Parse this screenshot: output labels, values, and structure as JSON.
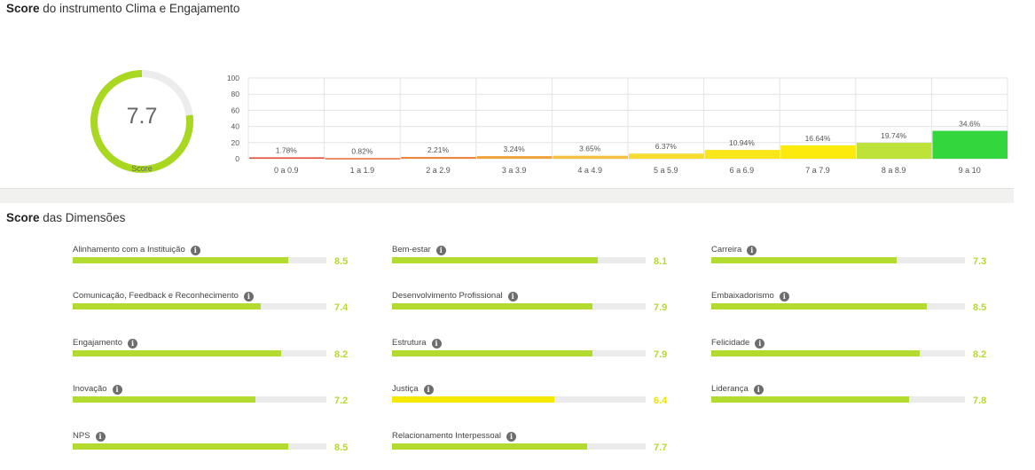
{
  "header": {
    "title_bold": "Score",
    "title_rest": " do instrumento Clima e Engajamento"
  },
  "score": {
    "value": "7.7",
    "label": "Score",
    "max": 10,
    "ring_color": "#a8d81f",
    "track_color": "#ececec"
  },
  "chart_data": {
    "type": "bar",
    "categories": [
      "0 a 0.9",
      "1 a 1.9",
      "2 a 2.9",
      "3 a 3.9",
      "4 a 4.9",
      "5 a 5.9",
      "6 a 6.9",
      "7 a 7.9",
      "8 a 8.9",
      "9 a 10"
    ],
    "values": [
      1.78,
      0.82,
      2.21,
      3.24,
      3.65,
      6.37,
      10.94,
      16.64,
      19.74,
      34.6
    ],
    "data_labels": [
      "1.78%",
      "0.82%",
      "2.21%",
      "3.24%",
      "3.65%",
      "6.37%",
      "10.94%",
      "16.64%",
      "19.74%",
      "34.6%"
    ],
    "colors": [
      "#e8503a",
      "#eb6a3c",
      "#f0863e",
      "#f2a43c",
      "#f5c03a",
      "#f6dc2e",
      "#fbe61c",
      "#fbea0b",
      "#bde33a",
      "#34d63e"
    ],
    "yticks": [
      0,
      20,
      40,
      60,
      80,
      100
    ],
    "ylim": [
      0,
      100
    ],
    "grid": true,
    "title": "",
    "xlabel": "",
    "ylabel": ""
  },
  "dimensions_title": {
    "bold": "Score",
    "rest": " das Dimensões"
  },
  "dimensions": [
    {
      "label": "Alinhamento com a Instituição",
      "value": "8.5",
      "score": 8.5,
      "color": "#b3da2e"
    },
    {
      "label": "Bem-estar",
      "value": "8.1",
      "score": 8.1,
      "color": "#b3da2e"
    },
    {
      "label": "Carreira",
      "value": "7.3",
      "score": 7.3,
      "color": "#b3da2e"
    },
    {
      "label": "Comunicação, Feedback e Reconhecimento",
      "value": "7.4",
      "score": 7.4,
      "color": "#b3da2e"
    },
    {
      "label": "Desenvolvimento Profissional",
      "value": "7.9",
      "score": 7.9,
      "color": "#b3da2e"
    },
    {
      "label": "Embaixadorismo",
      "value": "8.5",
      "score": 8.5,
      "color": "#b3da2e"
    },
    {
      "label": "Engajamento",
      "value": "8.2",
      "score": 8.2,
      "color": "#b3da2e"
    },
    {
      "label": "Estrutura",
      "value": "7.9",
      "score": 7.9,
      "color": "#b3da2e"
    },
    {
      "label": "Felicidade",
      "value": "8.2",
      "score": 8.2,
      "color": "#b3da2e"
    },
    {
      "label": "Inovação",
      "value": "7.2",
      "score": 7.2,
      "color": "#b3da2e"
    },
    {
      "label": "Justiça",
      "value": "6.4",
      "score": 6.4,
      "color": "#f5e700"
    },
    {
      "label": "Liderança",
      "value": "7.8",
      "score": 7.8,
      "color": "#b3da2e"
    },
    {
      "label": "NPS",
      "value": "8.5",
      "score": 8.5,
      "color": "#b3da2e"
    },
    {
      "label": "Relacionamento Interpessoal",
      "value": "7.7",
      "score": 7.7,
      "color": "#b3da2e"
    }
  ],
  "info_icon": "info-icon"
}
